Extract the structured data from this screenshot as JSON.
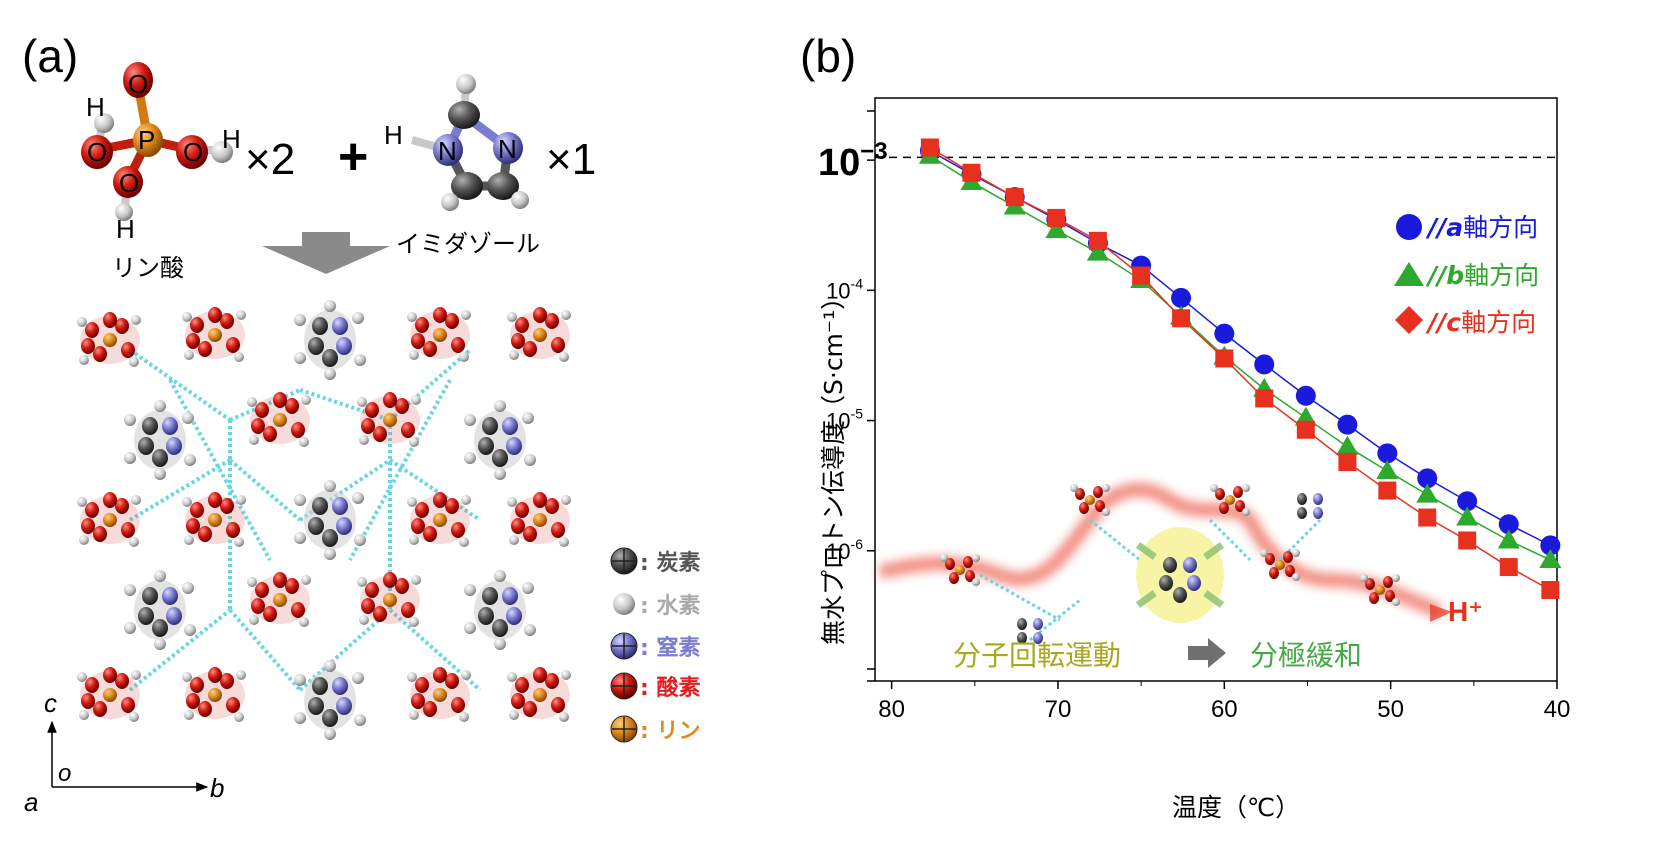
{
  "panel_a": {
    "label": "(a)",
    "phosphoric_acid": {
      "name": "リン酸",
      "count": "×2",
      "atoms": {
        "phosphorus": "P",
        "oxygen": "O",
        "hydrogen": "H"
      }
    },
    "plus": "+",
    "imidazole": {
      "name": "イミダゾール",
      "count": "×1",
      "atoms": {
        "nitrogen": "N",
        "hydrogen": "H"
      }
    },
    "legend": [
      {
        "label": ": 炭素",
        "color": "#555555"
      },
      {
        "label": ": 水素",
        "color": "#a9a9a9"
      },
      {
        "label": ": 窒素",
        "color": "#7b7bd0"
      },
      {
        "label": ": 酸素",
        "color": "#e02020"
      },
      {
        "label": ": リン",
        "color": "#e08a20"
      }
    ],
    "axes": {
      "c": "c",
      "o": "o",
      "a": "a",
      "b": "b"
    }
  },
  "panel_b": {
    "label": "(b)",
    "annotations": {
      "rotation": "分子回転運動",
      "relaxation": "分極緩和",
      "proton": "H⁺",
      "ref_line_label_base": "10",
      "ref_line_label_exp": "−3"
    },
    "chart_data": {
      "type": "line",
      "x_scale": "linear",
      "x_reversed": true,
      "xlim": [
        81,
        40
      ],
      "y_scale": "log",
      "ylim": [
        1e-07,
        0.003
      ],
      "xlabel": "温度（℃）",
      "ylabel": "無水プロトン伝導度（S·cm⁻¹）",
      "x_ticks": [
        "80",
        "70",
        "60",
        "50",
        "40"
      ],
      "y_ticks": [
        {
          "base": "10",
          "exp": "-3",
          "value": 0.001
        },
        {
          "base": "10",
          "exp": "-4",
          "value": 0.0001
        },
        {
          "base": "10",
          "exp": "-5",
          "value": 1e-05
        },
        {
          "base": "10",
          "exp": "-6",
          "value": 1e-06
        }
      ],
      "reference_line": {
        "y": 0.00105,
        "style": "dashed"
      },
      "legend_position": "top-right",
      "series": [
        {
          "name": "//a軸方向",
          "prefix": "//",
          "axis": "a",
          "suffix": "軸方向",
          "color": "#1a1adc",
          "marker": "circle",
          "x": [
            77.7,
            75.2,
            72.6,
            70.1,
            67.6,
            65.0,
            62.6,
            60.0,
            57.6,
            55.1,
            52.6,
            50.2,
            47.8,
            45.4,
            42.9,
            40.4
          ],
          "y": [
            0.00118,
            0.00078,
            0.00052,
            0.00035,
            0.00023,
            0.000155,
            8.75e-05,
            4.65e-05,
            2.7e-05,
            1.55e-05,
            9.3e-06,
            5.6e-06,
            3.6e-06,
            2.4e-06,
            1.6e-06,
            1.1e-06
          ]
        },
        {
          "name": "//b軸方向",
          "prefix": "//",
          "axis": "b",
          "suffix": "軸方向",
          "color": "#2ea82e",
          "marker": "triangle",
          "x": [
            77.7,
            75.2,
            72.6,
            70.1,
            67.6,
            65.0,
            62.6,
            60.0,
            57.6,
            55.1,
            52.6,
            50.2,
            47.8,
            45.4,
            42.9,
            40.4
          ],
          "y": [
            0.00108,
            0.00068,
            0.00044,
            0.00029,
            0.000195,
            0.00012,
            6.3e-05,
            3.1e-05,
            1.75e-05,
            1.05e-05,
            6.3e-06,
            4.1e-06,
            2.7e-06,
            1.8e-06,
            1.2e-06,
            8.5e-07
          ]
        },
        {
          "name": "//c軸方向",
          "prefix": "//",
          "axis": "c",
          "suffix": "軸方向",
          "color": "#e8301e",
          "marker": "square",
          "x": [
            77.7,
            75.2,
            72.6,
            70.1,
            67.6,
            65.0,
            62.6,
            60.0,
            57.6,
            55.1,
            52.6,
            50.2,
            47.8,
            45.4,
            42.9,
            40.4
          ],
          "y": [
            0.00125,
            0.0008,
            0.00052,
            0.00036,
            0.00024,
            0.00013,
            6.1e-05,
            3e-05,
            1.48e-05,
            8.5e-06,
            4.8e-06,
            2.9e-06,
            1.8e-06,
            1.2e-06,
            7.5e-07,
            5e-07
          ]
        }
      ]
    }
  }
}
